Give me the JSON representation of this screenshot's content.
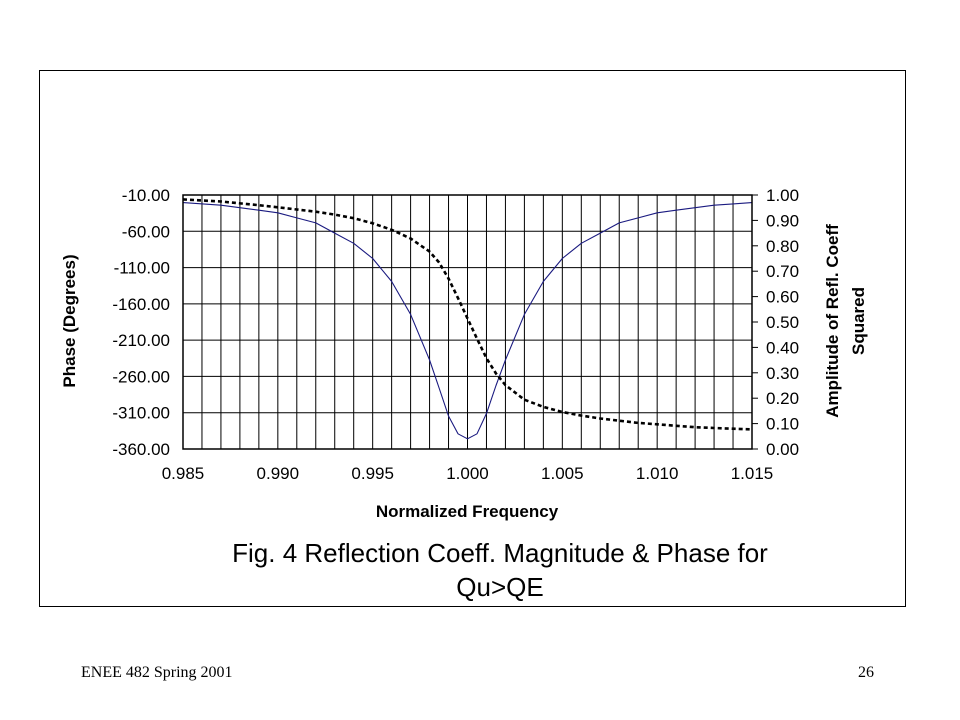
{
  "footer": {
    "course": "ENEE 482 Spring 2001",
    "page_number": "26"
  },
  "figure": {
    "caption_line1": "Fig. 4 Reflection Coeff. Magnitude & Phase for",
    "caption_line2": "Qu>QE"
  },
  "chart_data": {
    "type": "line",
    "xlabel": "Normalized Frequency",
    "ylabel_left": "Phase (Degrees)",
    "ylabel_right_line1": "Amplitude of Refl. Coeff",
    "ylabel_right_line2": "Squared",
    "x_ticks": [
      "0.985",
      "0.990",
      "0.995",
      "1.000",
      "1.005",
      "1.010",
      "1.015"
    ],
    "y_left_ticks": [
      "-10.00",
      "-60.00",
      "-110.00",
      "-160.00",
      "-210.00",
      "-260.00",
      "-310.00",
      "-360.00"
    ],
    "y_right_ticks": [
      "1.00",
      "0.90",
      "0.80",
      "0.70",
      "0.60",
      "0.50",
      "0.40",
      "0.30",
      "0.20",
      "0.10",
      "0.00"
    ],
    "xlim": [
      0.985,
      1.015
    ],
    "ylim_left": [
      -360,
      -10
    ],
    "ylim_right": [
      0,
      1
    ],
    "grid": true,
    "vertical_grid_step": 0.001,
    "series": [
      {
        "axis": "right",
        "style": "solid",
        "color": "#1a1a80",
        "x": [
          0.985,
          0.987,
          0.989,
          0.99,
          0.991,
          0.992,
          0.993,
          0.994,
          0.995,
          0.996,
          0.997,
          0.998,
          0.9985,
          0.999,
          0.9995,
          1.0,
          1.0005,
          1.001,
          1.0015,
          1.002,
          1.003,
          1.004,
          1.005,
          1.006,
          1.007,
          1.008,
          1.009,
          1.01,
          1.011,
          1.012,
          1.013,
          1.014,
          1.015
        ],
        "y": [
          0.97,
          0.96,
          0.94,
          0.93,
          0.91,
          0.89,
          0.85,
          0.81,
          0.75,
          0.66,
          0.53,
          0.35,
          0.24,
          0.13,
          0.06,
          0.04,
          0.06,
          0.14,
          0.25,
          0.35,
          0.53,
          0.66,
          0.75,
          0.81,
          0.85,
          0.89,
          0.91,
          0.93,
          0.94,
          0.95,
          0.96,
          0.965,
          0.97
        ]
      },
      {
        "axis": "left",
        "style": "dashed",
        "color": "#000000",
        "x": [
          0.985,
          0.987,
          0.989,
          0.99,
          0.991,
          0.992,
          0.993,
          0.994,
          0.995,
          0.996,
          0.997,
          0.998,
          0.9985,
          0.999,
          0.9995,
          1.0,
          1.0005,
          1.001,
          1.0015,
          1.002,
          1.003,
          1.004,
          1.005,
          1.006,
          1.007,
          1.008,
          1.009,
          1.01,
          1.011,
          1.012,
          1.013,
          1.014,
          1.015
        ],
        "y": [
          -16,
          -19,
          -24,
          -27,
          -30,
          -33,
          -37,
          -42,
          -49,
          -58,
          -70,
          -88,
          -103,
          -125,
          -152,
          -180,
          -208,
          -235,
          -256,
          -272,
          -292,
          -302,
          -309,
          -314,
          -318,
          -321,
          -324,
          -326,
          -328,
          -330,
          -331,
          -332,
          -333
        ]
      }
    ]
  }
}
